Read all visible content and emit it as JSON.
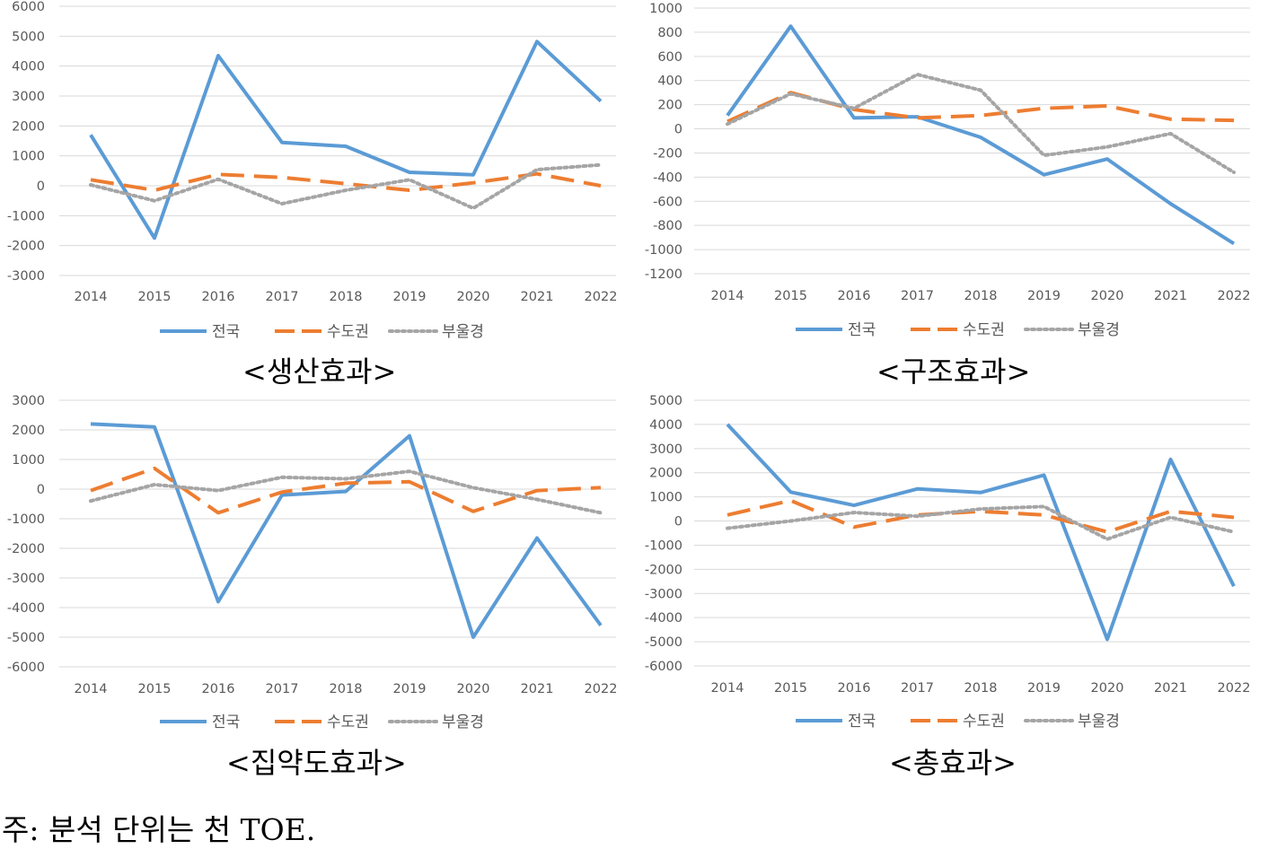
{
  "colors": {
    "series": [
      "#5b9bd5",
      "#ed7d31",
      "#a5a5a5"
    ],
    "grid": "#d9d9d9",
    "tick_text": "#595959"
  },
  "footnote": "주: 분석 단위는 천 TOE.",
  "chart_data": [
    {
      "type": "line",
      "caption": "<생산효과>",
      "x": [
        2014,
        2015,
        2016,
        2017,
        2018,
        2019,
        2020,
        2021,
        2022
      ],
      "ylim": [
        -3000,
        6000
      ],
      "ystep": 1000,
      "grid": true,
      "legend": "bottom",
      "series": [
        {
          "name": "전국",
          "style": "solid",
          "values": [
            1700,
            -1750,
            4350,
            1450,
            1320,
            450,
            370,
            4820,
            2830
          ]
        },
        {
          "name": "수도권",
          "style": "dashed",
          "values": [
            200,
            -150,
            380,
            280,
            70,
            -150,
            100,
            400,
            0
          ]
        },
        {
          "name": "부울경",
          "style": "dotted",
          "values": [
            30,
            -500,
            220,
            -600,
            -150,
            200,
            -750,
            540,
            700
          ]
        }
      ]
    },
    {
      "type": "line",
      "caption": "<구조효과>",
      "x": [
        2014,
        2015,
        2016,
        2017,
        2018,
        2019,
        2020,
        2021,
        2022
      ],
      "ylim": [
        -1200,
        1000
      ],
      "ystep": 200,
      "grid": true,
      "legend": "bottom",
      "series": [
        {
          "name": "전국",
          "style": "solid",
          "values": [
            110,
            850,
            90,
            100,
            -70,
            -380,
            -250,
            -620,
            -950
          ]
        },
        {
          "name": "수도권",
          "style": "dashed",
          "values": [
            60,
            300,
            160,
            90,
            110,
            170,
            190,
            80,
            70
          ]
        },
        {
          "name": "부울경",
          "style": "dotted",
          "values": [
            40,
            290,
            170,
            450,
            320,
            -220,
            -150,
            -40,
            -360
          ]
        }
      ]
    },
    {
      "type": "line",
      "caption": "<집약도효과>",
      "x": [
        2014,
        2015,
        2016,
        2017,
        2018,
        2019,
        2020,
        2021,
        2022
      ],
      "ylim": [
        -6000,
        3000
      ],
      "ystep": 1000,
      "grid": true,
      "legend": "bottom",
      "series": [
        {
          "name": "전국",
          "style": "solid",
          "values": [
            2200,
            2100,
            -3800,
            -200,
            -80,
            1800,
            -5000,
            -1650,
            -4600
          ]
        },
        {
          "name": "수도권",
          "style": "dashed",
          "values": [
            -50,
            700,
            -800,
            -100,
            200,
            250,
            -750,
            -50,
            50
          ]
        },
        {
          "name": "부울경",
          "style": "dotted",
          "values": [
            -400,
            150,
            -50,
            400,
            350,
            600,
            50,
            -350,
            -800
          ]
        }
      ]
    },
    {
      "type": "line",
      "caption": "<총효과>",
      "x": [
        2014,
        2015,
        2016,
        2017,
        2018,
        2019,
        2020,
        2021,
        2022
      ],
      "ylim": [
        -6000,
        5000
      ],
      "ystep": 1000,
      "grid": true,
      "legend": "bottom",
      "series": [
        {
          "name": "전국",
          "style": "solid",
          "values": [
            4000,
            1200,
            650,
            1330,
            1180,
            1900,
            -4900,
            2550,
            -2700
          ]
        },
        {
          "name": "수도권",
          "style": "dashed",
          "values": [
            250,
            850,
            -250,
            250,
            400,
            250,
            -450,
            400,
            150
          ]
        },
        {
          "name": "부울경",
          "style": "dotted",
          "values": [
            -300,
            0,
            350,
            200,
            500,
            600,
            -750,
            150,
            -450
          ]
        }
      ]
    }
  ]
}
